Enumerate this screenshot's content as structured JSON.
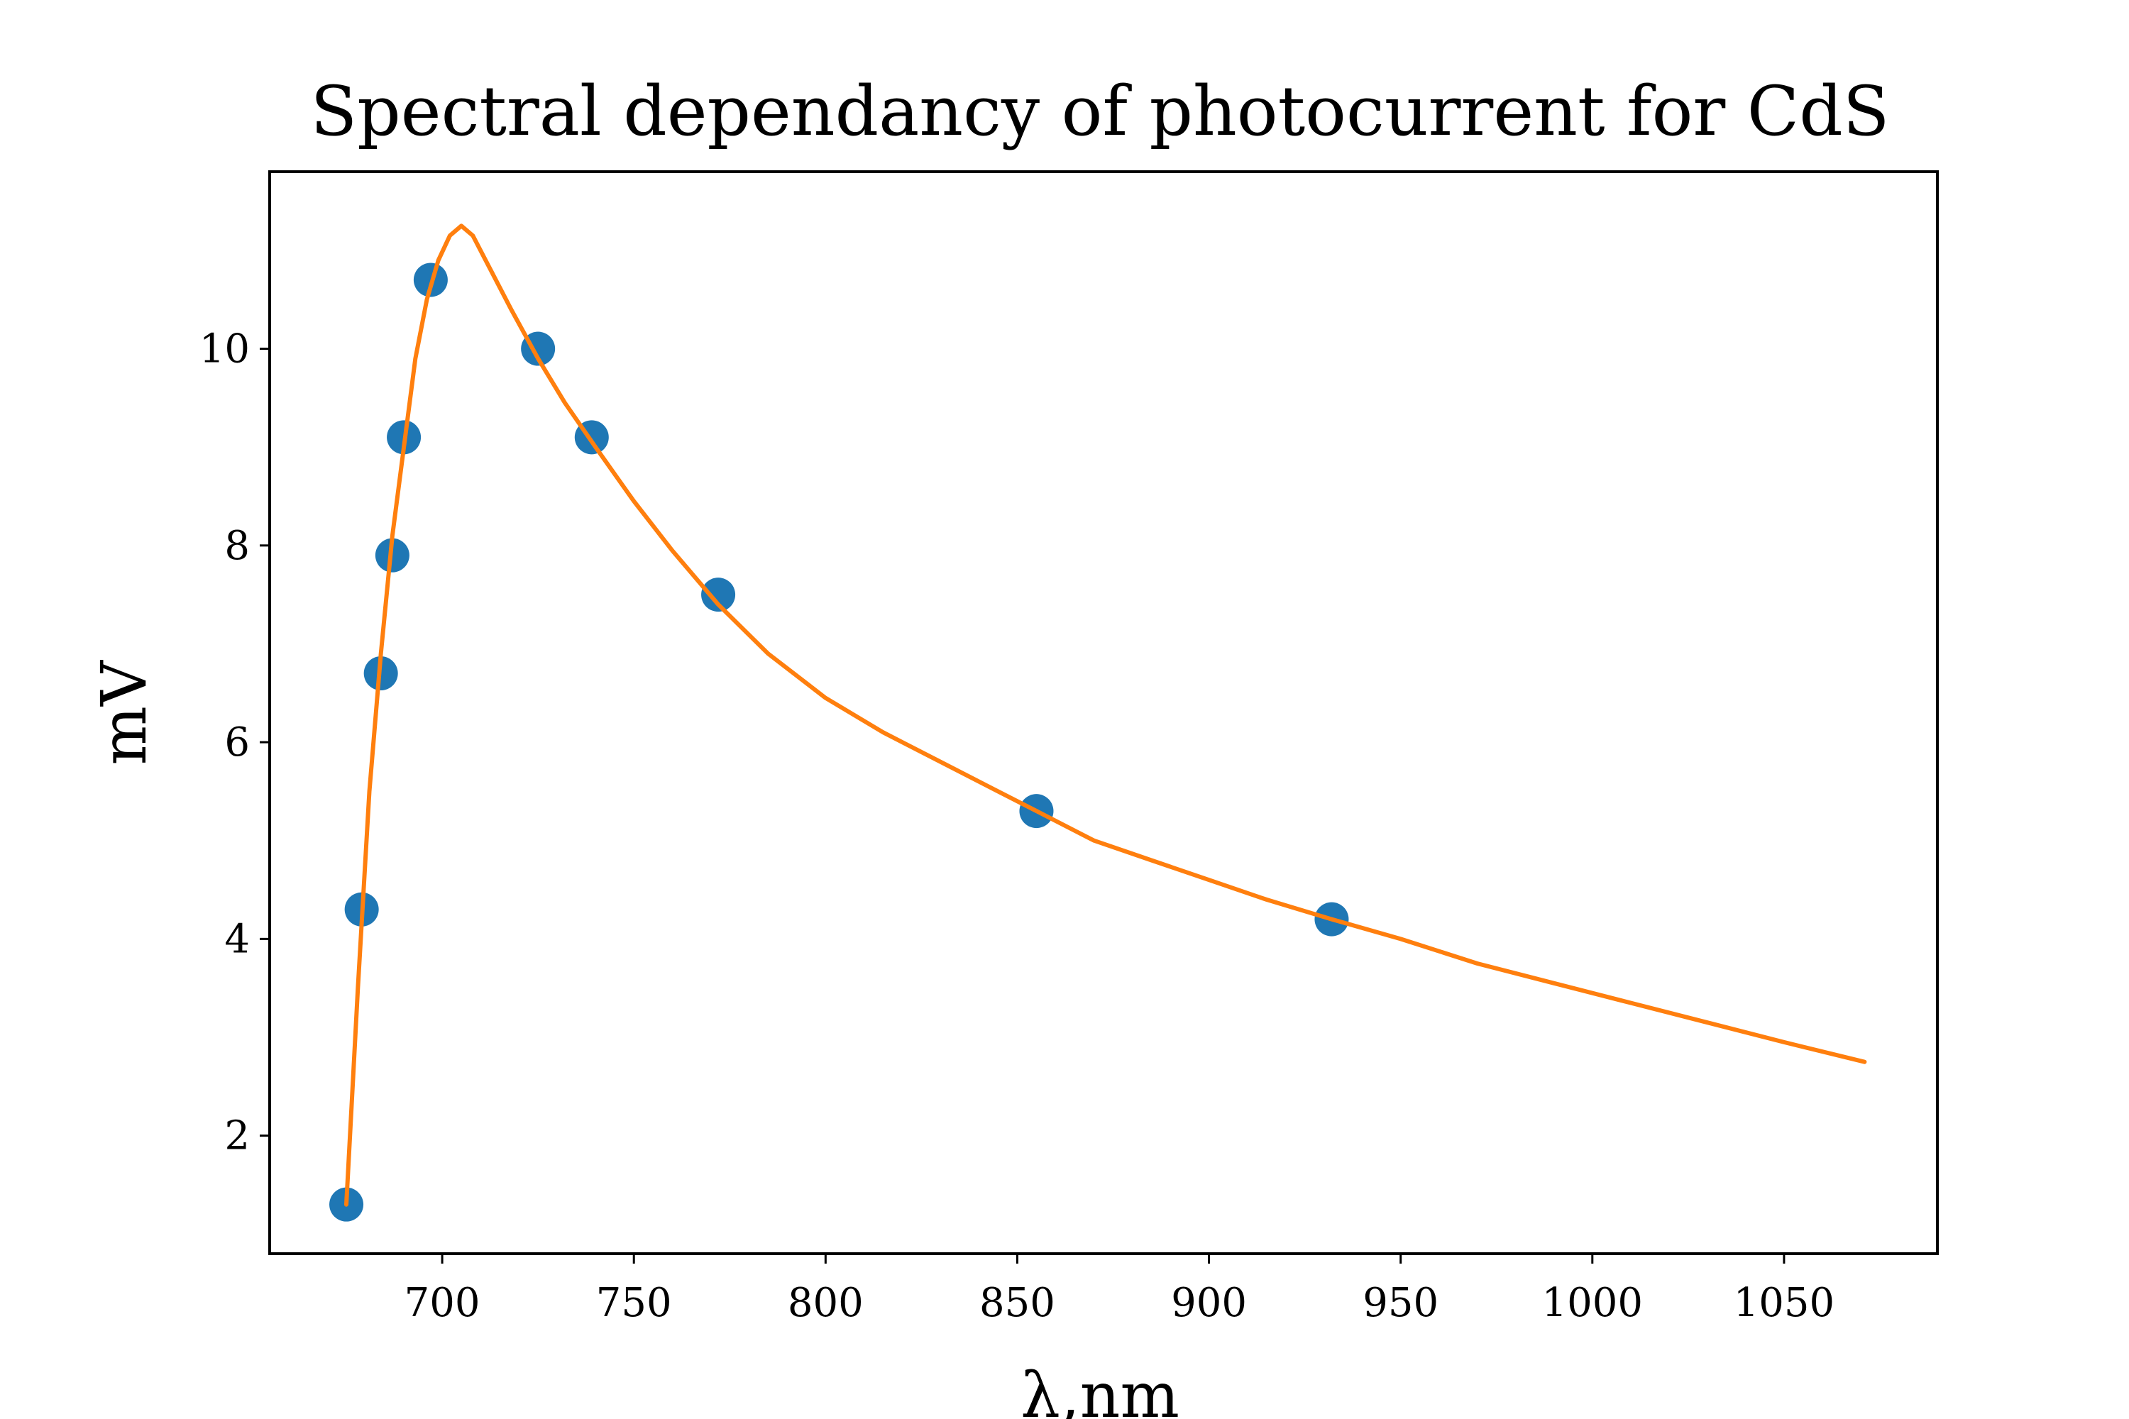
{
  "colors": {
    "points": "#1f77b4",
    "fit": "#ff7f0e"
  },
  "chart_data": {
    "type": "scatter",
    "title": "Spectral dependancy of photocurrent for CdS",
    "xlabel": "λ,nm",
    "ylabel": "mV",
    "xlim": [
      655,
      1090
    ],
    "ylim": [
      0.8,
      11.8
    ],
    "grid": false,
    "xticks": [
      700,
      750,
      800,
      850,
      900,
      950,
      1000,
      1050
    ],
    "yticks": [
      2,
      4,
      6,
      8,
      10
    ],
    "series": [
      {
        "kind": "scatter",
        "points": [
          {
            "x": 675,
            "y": 1.3
          },
          {
            "x": 679,
            "y": 4.3
          },
          {
            "x": 684,
            "y": 6.7
          },
          {
            "x": 687,
            "y": 7.9
          },
          {
            "x": 690,
            "y": 9.1
          },
          {
            "x": 697,
            "y": 10.7
          },
          {
            "x": 725,
            "y": 10.0
          },
          {
            "x": 739,
            "y": 9.1
          },
          {
            "x": 772,
            "y": 7.5
          },
          {
            "x": 855,
            "y": 5.3
          },
          {
            "x": 932,
            "y": 4.2
          }
        ]
      },
      {
        "kind": "line",
        "points": [
          {
            "x": 675,
            "y": 1.3
          },
          {
            "x": 678,
            "y": 3.5
          },
          {
            "x": 681,
            "y": 5.5
          },
          {
            "x": 684,
            "y": 6.9
          },
          {
            "x": 687,
            "y": 8.1
          },
          {
            "x": 690,
            "y": 9.0
          },
          {
            "x": 693,
            "y": 9.9
          },
          {
            "x": 696,
            "y": 10.5
          },
          {
            "x": 699,
            "y": 10.9
          },
          {
            "x": 702,
            "y": 11.15
          },
          {
            "x": 705,
            "y": 11.25
          },
          {
            "x": 708,
            "y": 11.15
          },
          {
            "x": 712,
            "y": 10.85
          },
          {
            "x": 718,
            "y": 10.4
          },
          {
            "x": 725,
            "y": 9.9
          },
          {
            "x": 732,
            "y": 9.45
          },
          {
            "x": 740,
            "y": 9.0
          },
          {
            "x": 750,
            "y": 8.45
          },
          {
            "x": 760,
            "y": 7.95
          },
          {
            "x": 772,
            "y": 7.4
          },
          {
            "x": 785,
            "y": 6.9
          },
          {
            "x": 800,
            "y": 6.45
          },
          {
            "x": 815,
            "y": 6.1
          },
          {
            "x": 830,
            "y": 5.8
          },
          {
            "x": 845,
            "y": 5.5
          },
          {
            "x": 855,
            "y": 5.3
          },
          {
            "x": 870,
            "y": 5.0
          },
          {
            "x": 885,
            "y": 4.8
          },
          {
            "x": 900,
            "y": 4.6
          },
          {
            "x": 915,
            "y": 4.4
          },
          {
            "x": 932,
            "y": 4.2
          },
          {
            "x": 950,
            "y": 4.0
          },
          {
            "x": 970,
            "y": 3.75
          },
          {
            "x": 990,
            "y": 3.55
          },
          {
            "x": 1010,
            "y": 3.35
          },
          {
            "x": 1030,
            "y": 3.15
          },
          {
            "x": 1050,
            "y": 2.95
          },
          {
            "x": 1071,
            "y": 2.75
          }
        ]
      }
    ]
  }
}
